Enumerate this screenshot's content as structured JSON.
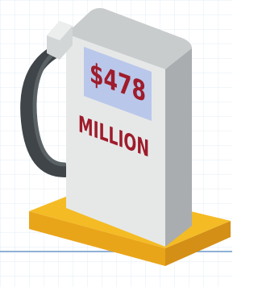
{
  "display": {
    "amount": "$478",
    "unit": "MILLION"
  }
}
